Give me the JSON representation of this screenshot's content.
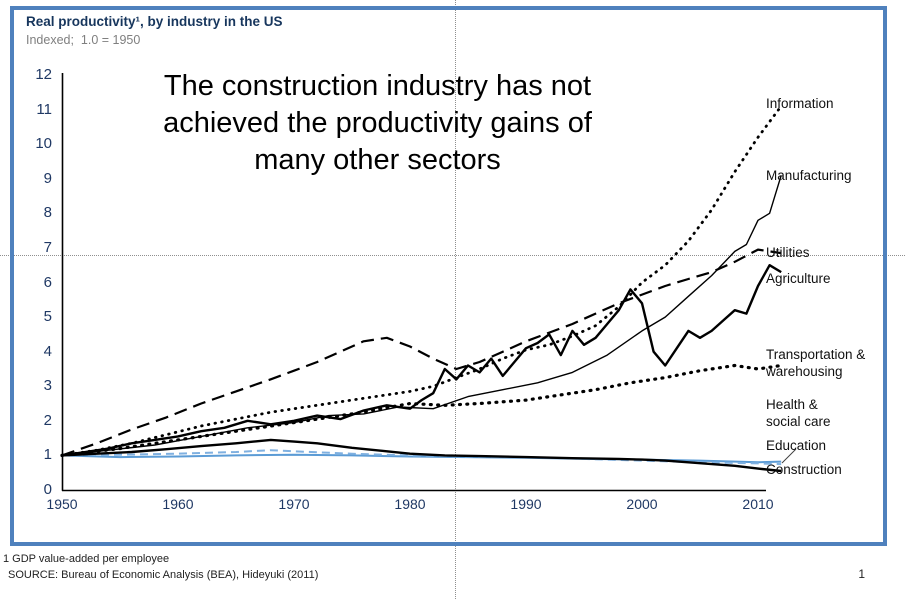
{
  "header": {
    "title": "Real productivity¹, by industry in the US",
    "subtitle": "Indexed;  1.0 = 1950"
  },
  "annotation": {
    "lines": [
      "The construction industry has not",
      "achieved the productivity gains of",
      "many other sectors"
    ]
  },
  "footnotes": {
    "note1": "1 GDP value-added per employee",
    "source": "SOURCE: Bureau of Economic Analysis (BEA), Hideyuki (2011)"
  },
  "page_number": "1",
  "colors": {
    "frame": "#4f81bd",
    "axis_text": "#1f3864",
    "title_text": "#17365d",
    "guide_line": "#8f8f8f",
    "black_series": "#000000",
    "blue_series": "#5b9bd5"
  },
  "chart_data": {
    "type": "line",
    "title": "Real productivity, by industry in the US",
    "subtitle": "Indexed; 1.0 = 1950",
    "xlabel": "",
    "ylabel": "",
    "xlim": [
      1950,
      2013
    ],
    "ylim": [
      0,
      12
    ],
    "grid": false,
    "legend_position": "right-line-end-labels",
    "x_ticks": [
      1950,
      1960,
      1970,
      1980,
      1990,
      2000,
      2010
    ],
    "y_ticks": [
      0,
      1,
      2,
      3,
      4,
      5,
      6,
      7,
      8,
      9,
      10,
      11,
      12
    ],
    "series": [
      {
        "id": "health",
        "name": "Health & social care",
        "color": "#5b9bd5",
        "line_style": "solid",
        "x": [
          1950,
          1955,
          1960,
          1965,
          1970,
          1975,
          1980,
          1985,
          1990,
          1995,
          2000,
          2005,
          2010,
          2012
        ],
        "values": [
          1.0,
          0.95,
          0.97,
          1.0,
          1.02,
          1.0,
          0.97,
          0.95,
          0.93,
          0.9,
          0.88,
          0.85,
          0.8,
          0.82
        ]
      },
      {
        "id": "education",
        "name": "Education",
        "color": "#7fb0e0",
        "line_style": "dashed",
        "x": [
          1950,
          1955,
          1960,
          1965,
          1968,
          1970,
          1975,
          1980,
          1985,
          1990,
          1995,
          2000,
          2005,
          2010,
          2012
        ],
        "values": [
          1.0,
          1.02,
          1.05,
          1.1,
          1.15,
          1.12,
          1.05,
          1.0,
          0.97,
          0.95,
          0.9,
          0.85,
          0.8,
          0.77,
          0.75
        ]
      },
      {
        "id": "construction",
        "name": "Construction",
        "color": "#000000",
        "line_style": "solid",
        "x": [
          1950,
          1953,
          1956,
          1959,
          1962,
          1965,
          1968,
          1970,
          1972,
          1975,
          1978,
          1980,
          1983,
          1986,
          1990,
          1994,
          1998,
          2000,
          2002,
          2004,
          2006,
          2008,
          2010,
          2012
        ],
        "values": [
          1.0,
          1.05,
          1.1,
          1.18,
          1.27,
          1.35,
          1.45,
          1.4,
          1.35,
          1.22,
          1.12,
          1.05,
          1.0,
          0.98,
          0.95,
          0.92,
          0.9,
          0.88,
          0.85,
          0.8,
          0.75,
          0.7,
          0.62,
          0.55
        ]
      },
      {
        "id": "transportation",
        "name": "Transportation & warehousing",
        "color": "#000000",
        "line_style": "bold-dotted",
        "x": [
          1950,
          1955,
          1960,
          1965,
          1970,
          1975,
          1980,
          1983,
          1986,
          1990,
          1993,
          1996,
          1999,
          2002,
          2005,
          2008,
          2010,
          2012
        ],
        "values": [
          1.0,
          1.2,
          1.45,
          1.7,
          1.95,
          2.2,
          2.5,
          2.45,
          2.5,
          2.6,
          2.75,
          2.9,
          3.1,
          3.25,
          3.45,
          3.6,
          3.5,
          3.6
        ]
      },
      {
        "id": "utilities",
        "name": "Utilities",
        "color": "#000000",
        "line_style": "long-dash",
        "x": [
          1950,
          1953,
          1956,
          1959,
          1962,
          1965,
          1968,
          1970,
          1972,
          1974,
          1976,
          1978,
          1980,
          1982,
          1984,
          1986,
          1988,
          1990,
          1992,
          1994,
          1996,
          1998,
          2000,
          2002,
          2004,
          2006,
          2008,
          2010,
          2012
        ],
        "values": [
          1.0,
          1.35,
          1.75,
          2.1,
          2.5,
          2.85,
          3.2,
          3.45,
          3.7,
          4.0,
          4.3,
          4.4,
          4.15,
          3.8,
          3.5,
          3.7,
          4.0,
          4.3,
          4.55,
          4.8,
          5.1,
          5.4,
          5.65,
          5.9,
          6.1,
          6.3,
          6.6,
          6.95,
          6.85
        ]
      },
      {
        "id": "agriculture",
        "name": "Agriculture",
        "color": "#000000",
        "line_style": "solid",
        "x": [
          1950,
          1952,
          1954,
          1956,
          1958,
          1960,
          1962,
          1964,
          1966,
          1968,
          1970,
          1972,
          1974,
          1976,
          1978,
          1980,
          1981,
          1982,
          1983,
          1984,
          1985,
          1986,
          1987,
          1988,
          1989,
          1990,
          1991,
          1992,
          1993,
          1994,
          1995,
          1996,
          1997,
          1998,
          1999,
          2000,
          2001,
          2002,
          2003,
          2004,
          2005,
          2006,
          2007,
          2008,
          2009,
          2010,
          2011,
          2012
        ],
        "values": [
          1.0,
          1.1,
          1.2,
          1.35,
          1.45,
          1.55,
          1.7,
          1.8,
          2.0,
          1.9,
          2.0,
          2.15,
          2.05,
          2.3,
          2.45,
          2.35,
          2.6,
          2.8,
          3.5,
          3.2,
          3.6,
          3.4,
          3.8,
          3.3,
          3.7,
          4.1,
          4.25,
          4.5,
          3.9,
          4.6,
          4.2,
          4.4,
          4.8,
          5.2,
          5.8,
          5.4,
          4.0,
          3.6,
          4.1,
          4.6,
          4.4,
          4.6,
          4.9,
          5.2,
          5.1,
          5.9,
          6.5,
          6.3
        ]
      },
      {
        "id": "manufacturing",
        "name": "Manufacturing",
        "color": "#000000",
        "line_style": "solid",
        "x": [
          1950,
          1954,
          1958,
          1962,
          1966,
          1970,
          1973,
          1976,
          1979,
          1982,
          1985,
          1988,
          1991,
          1994,
          1997,
          2000,
          2002,
          2004,
          2006,
          2008,
          2009,
          2010,
          2011,
          2012
        ],
        "values": [
          1.0,
          1.15,
          1.3,
          1.55,
          1.8,
          1.95,
          2.15,
          2.2,
          2.4,
          2.35,
          2.7,
          2.9,
          3.1,
          3.4,
          3.9,
          4.6,
          5.0,
          5.6,
          6.2,
          6.9,
          7.1,
          7.8,
          8.0,
          9.1
        ]
      },
      {
        "id": "information",
        "name": "Information",
        "color": "#000000",
        "line_style": "dotted",
        "x": [
          1950,
          1953,
          1956,
          1959,
          1962,
          1965,
          1968,
          1971,
          1974,
          1977,
          1980,
          1982,
          1984,
          1986,
          1988,
          1990,
          1992,
          1994,
          1996,
          1998,
          2000,
          2002,
          2004,
          2006,
          2008,
          2010,
          2012
        ],
        "values": [
          1.0,
          1.15,
          1.35,
          1.6,
          1.85,
          2.05,
          2.25,
          2.4,
          2.55,
          2.7,
          2.85,
          3.0,
          3.25,
          3.5,
          3.8,
          4.05,
          4.2,
          4.45,
          4.75,
          5.3,
          6.0,
          6.5,
          7.2,
          8.1,
          9.2,
          10.2,
          11.1
        ]
      }
    ]
  }
}
